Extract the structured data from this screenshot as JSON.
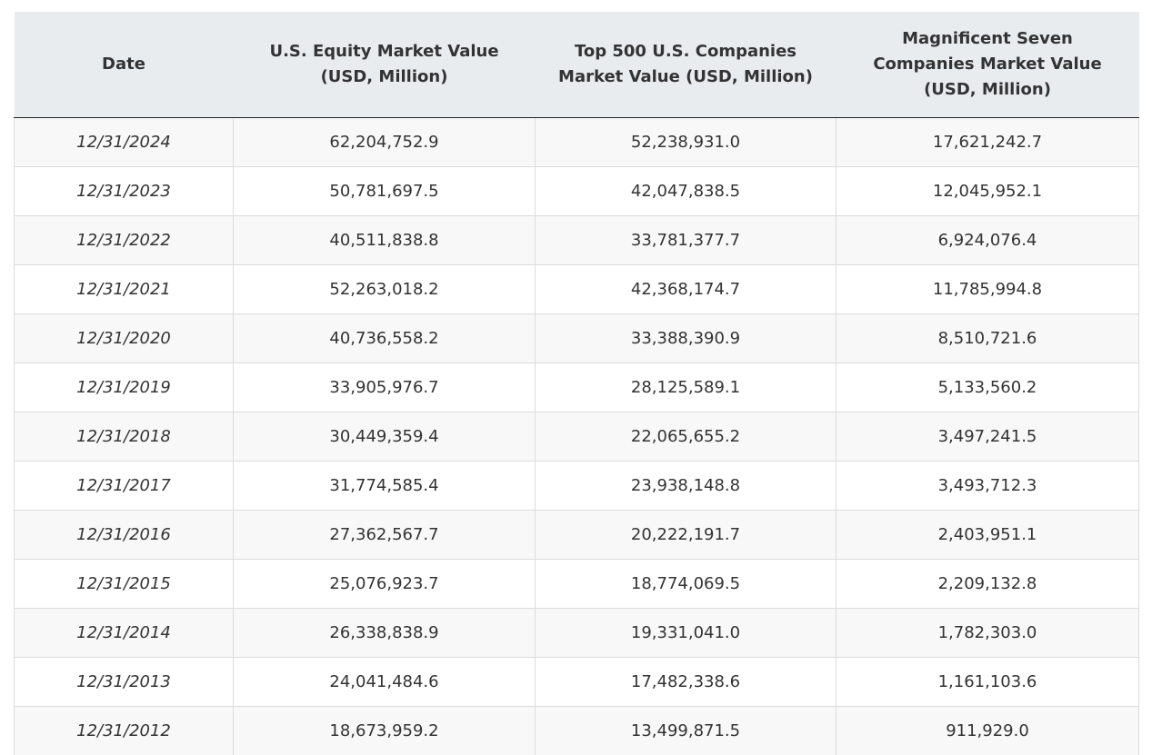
{
  "table": {
    "headers": [
      "Date",
      "U.S. Equity Market Value (USD, Million)",
      "Top 500 U.S. Companies Market Value (USD, Million)",
      "Magnificent Seven Companies Market Value (USD, Million)"
    ],
    "rows": [
      [
        "12/31/2024",
        "62,204,752.9",
        "52,238,931.0",
        "17,621,242.7"
      ],
      [
        "12/31/2023",
        "50,781,697.5",
        "42,047,838.5",
        "12,045,952.1"
      ],
      [
        "12/31/2022",
        "40,511,838.8",
        "33,781,377.7",
        "6,924,076.4"
      ],
      [
        "12/31/2021",
        "52,263,018.2",
        "42,368,174.7",
        "11,785,994.8"
      ],
      [
        "12/31/2020",
        "40,736,558.2",
        "33,388,390.9",
        "8,510,721.6"
      ],
      [
        "12/31/2019",
        "33,905,976.7",
        "28,125,589.1",
        "5,133,560.2"
      ],
      [
        "12/31/2018",
        "30,449,359.4",
        "22,065,655.2",
        "3,497,241.5"
      ],
      [
        "12/31/2017",
        "31,774,585.4",
        "23,938,148.8",
        "3,493,712.3"
      ],
      [
        "12/31/2016",
        "27,362,567.7",
        "20,222,191.7",
        "2,403,951.1"
      ],
      [
        "12/31/2015",
        "25,076,923.7",
        "18,774,069.5",
        "2,209,132.8"
      ],
      [
        "12/31/2014",
        "26,338,838.9",
        "19,331,041.0",
        "1,782,303.0"
      ],
      [
        "12/31/2013",
        "24,041,484.6",
        "17,482,338.6",
        "1,161,103.6"
      ],
      [
        "12/31/2012",
        "18,673,959.2",
        "13,499,871.5",
        "911,929.0"
      ]
    ]
  }
}
